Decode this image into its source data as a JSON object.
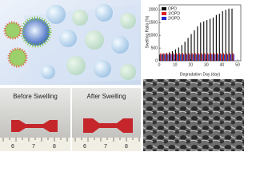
{
  "chart_data": {
    "type": "bar",
    "ylabel": "Swelling Ratio (%)",
    "xlabel": "Degradation Day (day)",
    "x": [
      1,
      3,
      5,
      7,
      9,
      11,
      13,
      15,
      17,
      19,
      21,
      23,
      25,
      27,
      29,
      31,
      33,
      35,
      37,
      39,
      41,
      43,
      45,
      47
    ],
    "series": [
      {
        "name": "OPD",
        "color": "#111111",
        "values": [
          250,
          280,
          300,
          330,
          380,
          450,
          520,
          620,
          750,
          900,
          1050,
          1200,
          1350,
          1500,
          1550,
          1600,
          1650,
          1700,
          1800,
          1850,
          1950,
          2000,
          2050,
          2050
        ]
      },
      {
        "name": "1/OPD",
        "color": "#e0201c",
        "values": [
          300,
          300,
          300,
          300,
          300,
          300,
          300,
          300,
          300,
          300,
          300,
          300,
          300,
          300,
          300,
          300,
          300,
          300,
          300,
          300,
          300,
          300,
          300,
          300
        ]
      },
      {
        "name": "2/OPD",
        "color": "#2430c8",
        "values": [
          250,
          250,
          250,
          250,
          250,
          250,
          250,
          250,
          250,
          250,
          250,
          250,
          250,
          250,
          250,
          250,
          250,
          250,
          250,
          250,
          250,
          250,
          250,
          250
        ]
      }
    ],
    "xlim": [
      0,
      52
    ],
    "xticks": [
      0,
      10,
      20,
      30,
      40,
      50
    ],
    "ylim": [
      0,
      2200
    ],
    "yticks": [
      0,
      500,
      1000,
      1500,
      2000
    ],
    "legend": "upper-left"
  },
  "photos": {
    "before": "Before Swelling",
    "after": "After Swelling",
    "ruler_before": [
      "6",
      "7",
      "8"
    ],
    "ruler_after": [
      "6",
      "7",
      "8"
    ]
  }
}
